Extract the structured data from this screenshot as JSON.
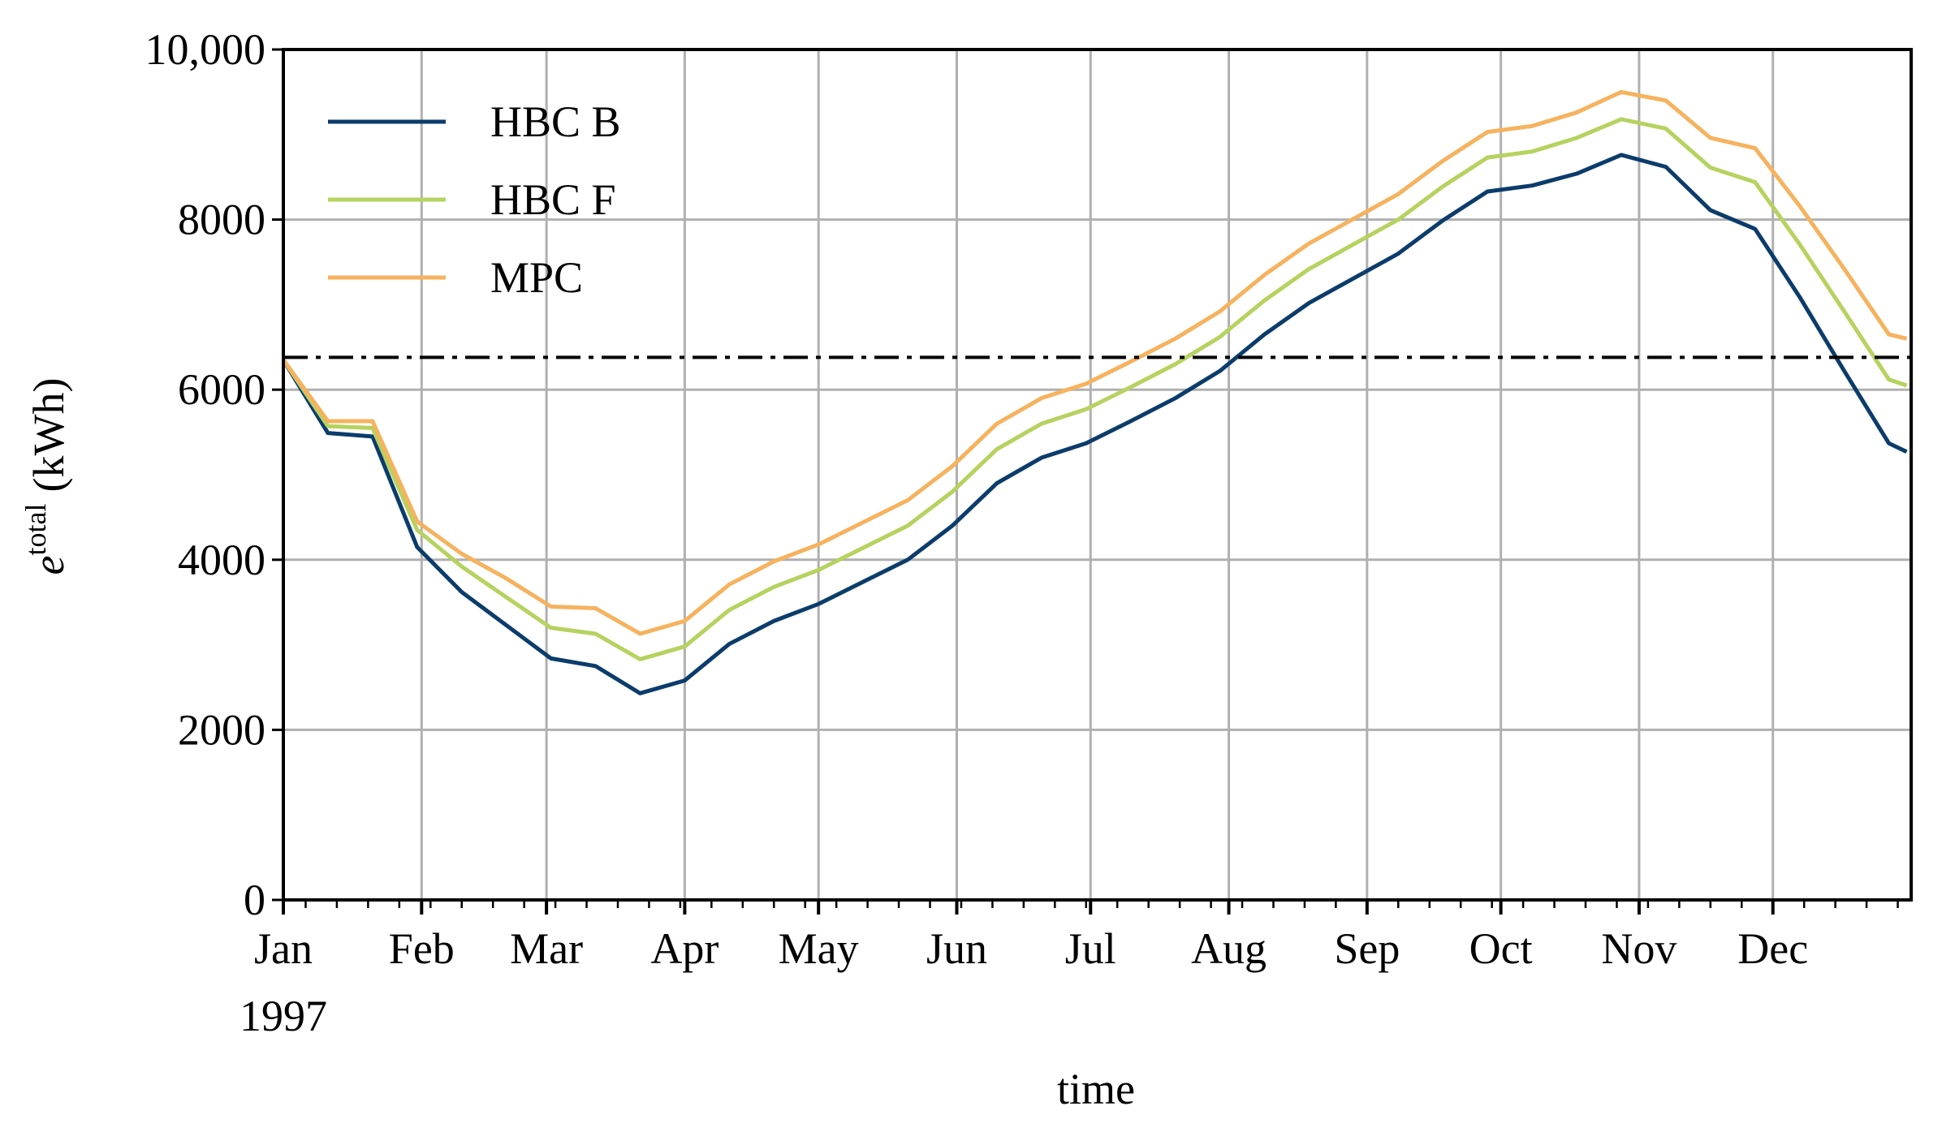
{
  "chart_data": {
    "type": "line",
    "ylabel": {
      "base": "e",
      "sup": "total",
      "unit": "(kWh)"
    },
    "xlabel": "time",
    "year_label": "1997",
    "x": [
      0,
      10,
      20,
      30,
      40,
      50,
      60,
      70,
      80,
      90,
      100,
      110,
      120,
      130,
      140,
      150,
      160,
      170,
      180,
      190,
      200,
      210,
      220,
      230,
      240,
      250,
      260,
      270,
      280,
      290,
      300,
      310,
      320,
      330,
      340,
      350,
      360,
      364
    ],
    "series": [
      {
        "name": "HBC B",
        "color": "#0b3c6b",
        "values": [
          6350,
          5490,
          5450,
          4150,
          3620,
          3230,
          2840,
          2750,
          2430,
          2580,
          3010,
          3280,
          3480,
          3740,
          4000,
          4400,
          4900,
          5200,
          5370,
          5630,
          5900,
          6220,
          6650,
          7020,
          7310,
          7600,
          7990,
          8330,
          8400,
          8540,
          8760,
          8620,
          8110,
          7890,
          7090,
          6220,
          5370,
          5270
        ]
      },
      {
        "name": "HBC F",
        "color": "#b6d25f",
        "values": [
          6350,
          5570,
          5550,
          4350,
          3920,
          3560,
          3200,
          3130,
          2830,
          2980,
          3410,
          3680,
          3880,
          4140,
          4400,
          4800,
          5300,
          5600,
          5770,
          6030,
          6300,
          6620,
          7050,
          7420,
          7710,
          8000,
          8390,
          8730,
          8800,
          8960,
          9180,
          9070,
          8610,
          8440,
          7710,
          6920,
          6120,
          6050
        ]
      },
      {
        "name": "MPC",
        "color": "#f6b25e",
        "values": [
          6350,
          5630,
          5630,
          4450,
          4070,
          3780,
          3450,
          3430,
          3130,
          3280,
          3710,
          3980,
          4180,
          4440,
          4700,
          5100,
          5600,
          5900,
          6070,
          6330,
          6600,
          6920,
          7350,
          7720,
          8010,
          8300,
          8690,
          9030,
          9100,
          9260,
          9500,
          9400,
          8960,
          8840,
          8160,
          7420,
          6650,
          6600
        ]
      }
    ],
    "hline": 6380,
    "xlim": [
      0,
      365
    ],
    "xticks": [
      {
        "value": 0,
        "label": "Jan"
      },
      {
        "value": 31,
        "label": "Feb"
      },
      {
        "value": 59,
        "label": "Mar"
      },
      {
        "value": 90,
        "label": "Apr"
      },
      {
        "value": 120,
        "label": "May"
      },
      {
        "value": 151,
        "label": "Jun"
      },
      {
        "value": 181,
        "label": "Jul"
      },
      {
        "value": 212,
        "label": "Aug"
      },
      {
        "value": 243,
        "label": "Sep"
      },
      {
        "value": 273,
        "label": "Oct"
      },
      {
        "value": 304,
        "label": "Nov"
      },
      {
        "value": 334,
        "label": "Dec"
      }
    ],
    "xminorticks": [
      5,
      12,
      19,
      26,
      33,
      40,
      47,
      54,
      61,
      68,
      75,
      82,
      89,
      96,
      103,
      110,
      117,
      124,
      131,
      138,
      145,
      152,
      159,
      166,
      173,
      180,
      187,
      194,
      201,
      208,
      215,
      222,
      229,
      236,
      243,
      250,
      257,
      264,
      271,
      278,
      285,
      292,
      299,
      306,
      313,
      320,
      327,
      334,
      341,
      348,
      355,
      362
    ],
    "ylim": [
      0,
      10000
    ],
    "yticks": [
      0,
      2000,
      4000,
      6000,
      8000,
      {
        "value": 10000,
        "label": "10,000"
      }
    ],
    "grid": true,
    "legend": "upper left"
  }
}
